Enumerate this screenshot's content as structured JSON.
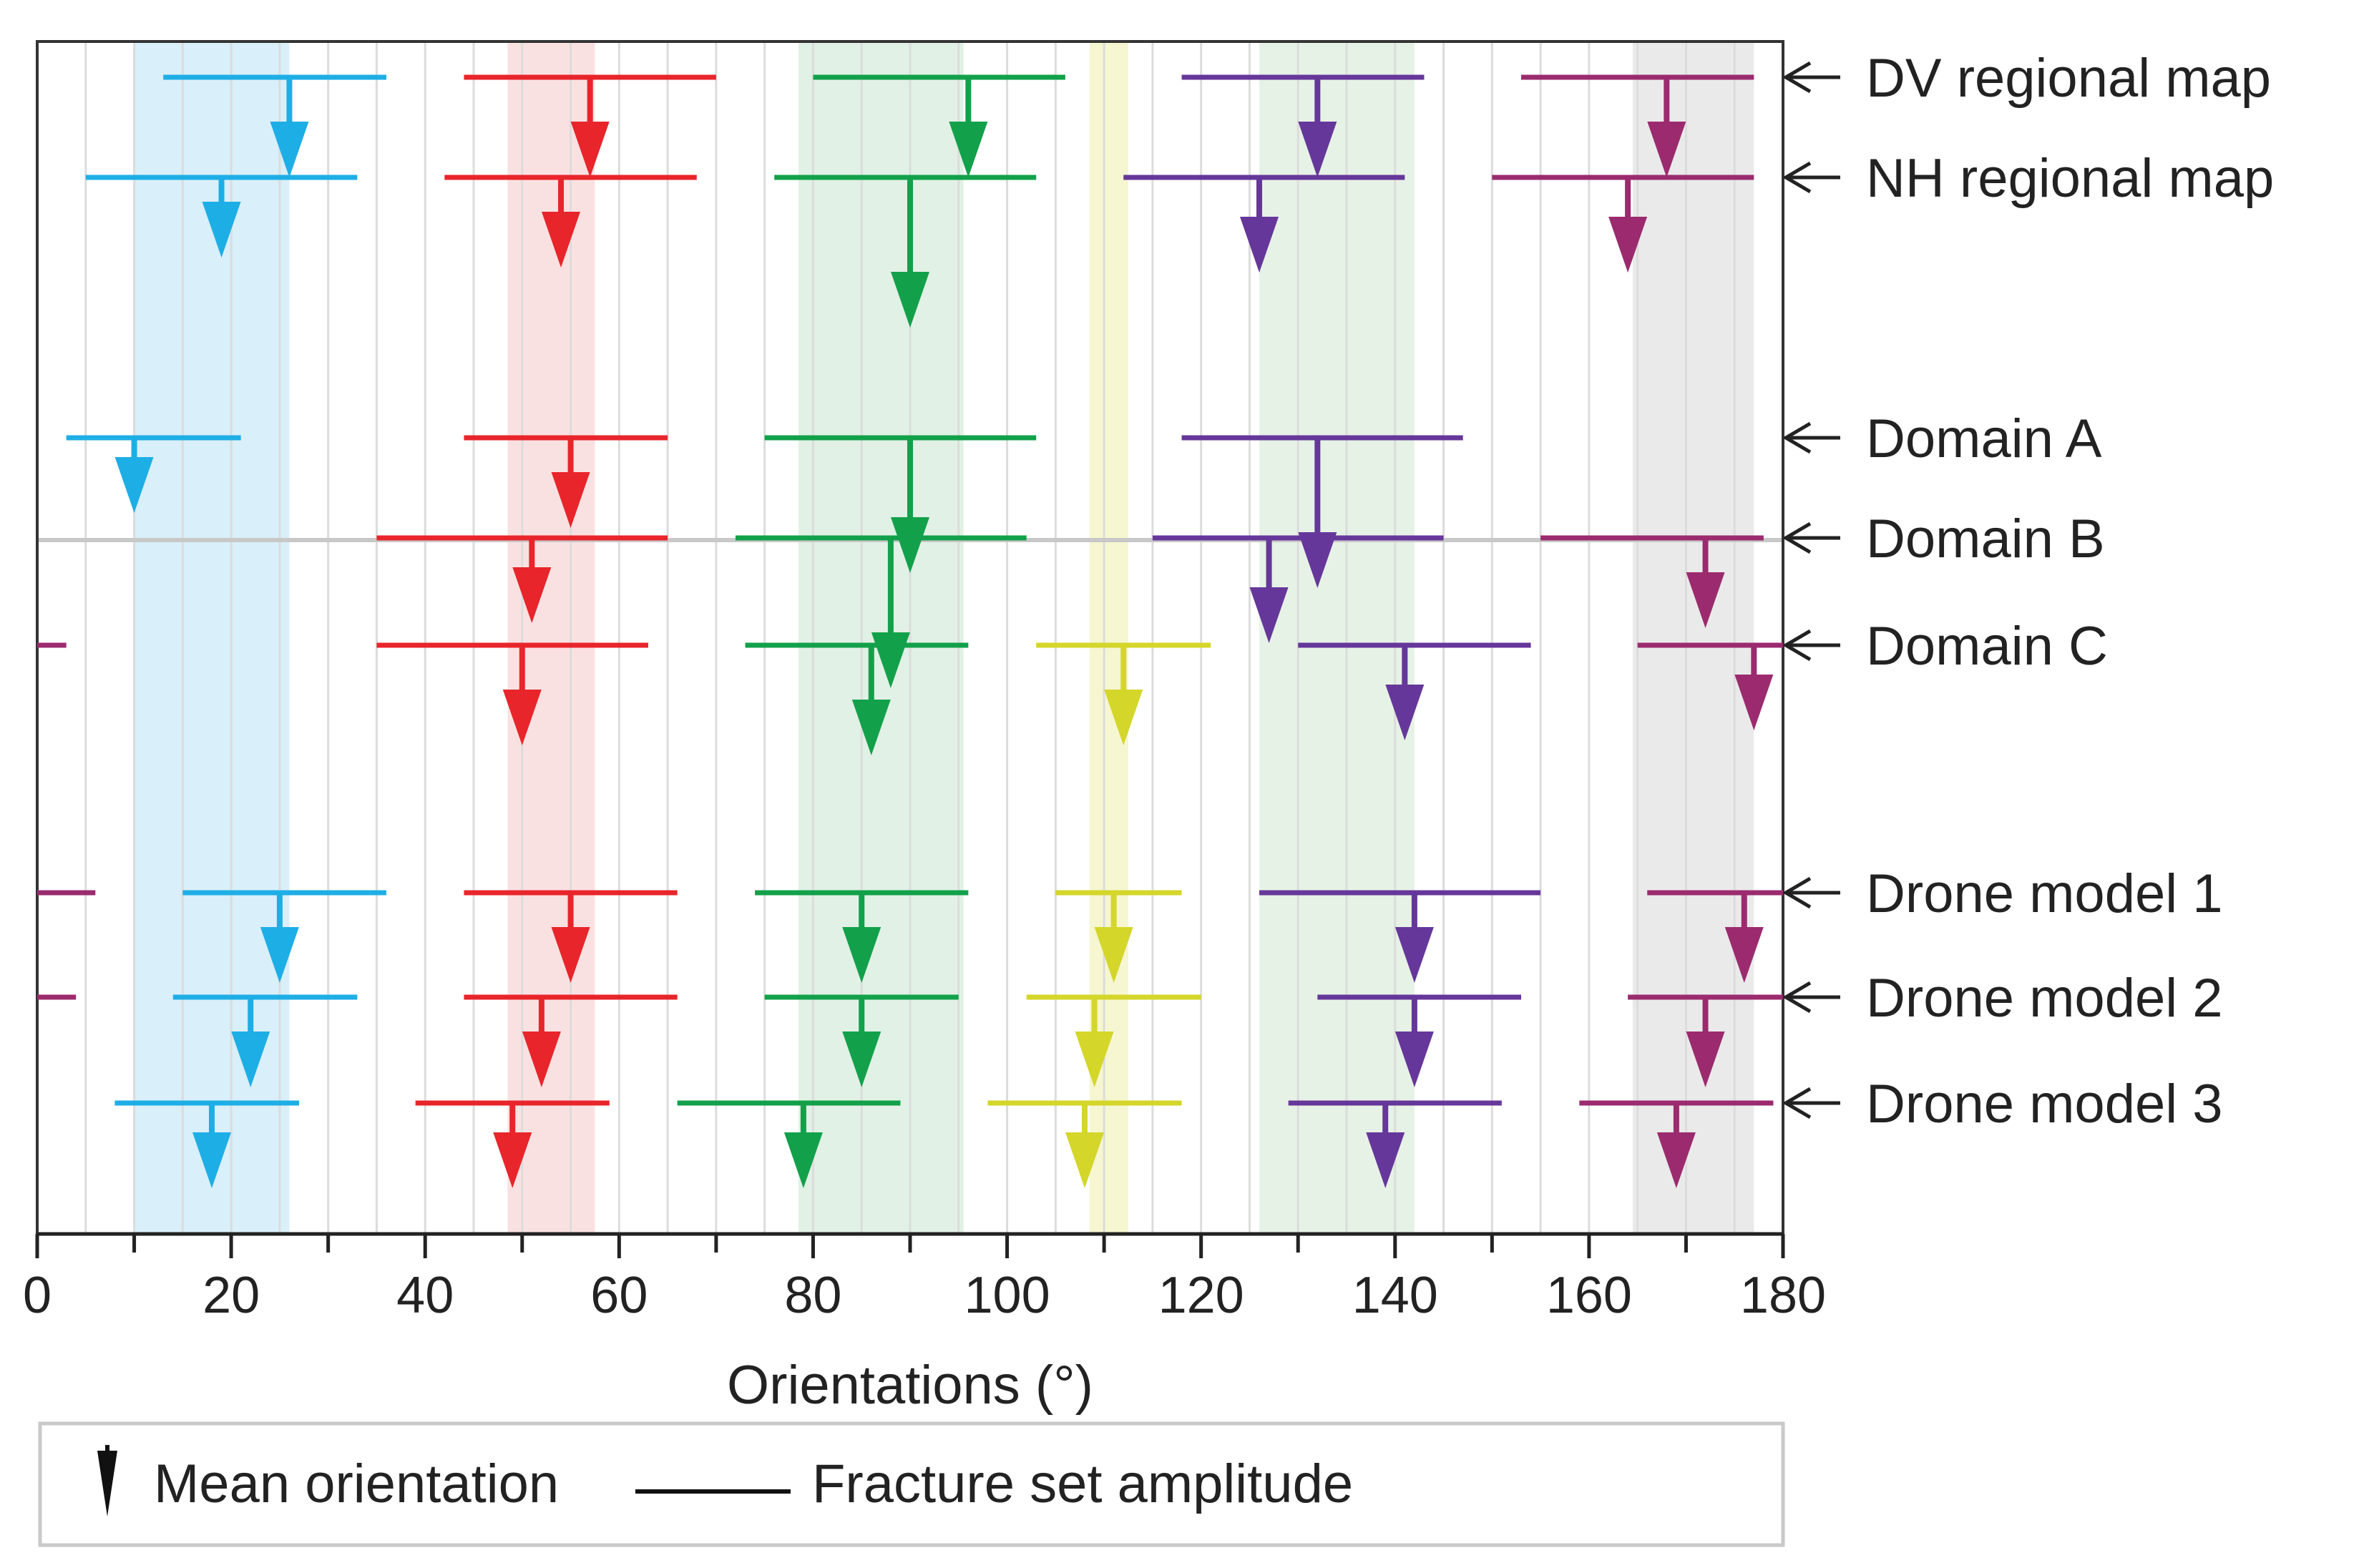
{
  "chart_data": {
    "type": "range-marker",
    "xlabel": "Orientations (°)",
    "xlim": [
      0,
      180
    ],
    "xticks": [
      0,
      20,
      40,
      60,
      80,
      100,
      120,
      140,
      160,
      180
    ],
    "bands": [
      {
        "range": [
          10,
          26
        ],
        "color": "#d2ecf8"
      },
      {
        "range": [
          48.5,
          57.5
        ],
        "color": "#f9dcdc"
      },
      {
        "range": [
          78.5,
          95.5
        ],
        "color": "#dcefe0"
      },
      {
        "range": [
          108.5,
          112.5
        ],
        "color": "#f5f5c8"
      },
      {
        "range": [
          126,
          142
        ],
        "color": "#e2f0e2"
      },
      {
        "range": [
          164.5,
          177
        ],
        "color": "#e6e6e6"
      }
    ],
    "rows": [
      {
        "name": "DV regional map",
        "sets": [
          {
            "set": "cyan",
            "min": 13,
            "max": 36,
            "mean": 26,
            "len": 1.0
          },
          {
            "set": "red",
            "min": 44,
            "max": 70,
            "mean": 57,
            "len": 1.0
          },
          {
            "set": "green",
            "min": 80,
            "max": 106,
            "mean": 96,
            "len": 1.0
          },
          {
            "set": "purple",
            "min": 118,
            "max": 143,
            "mean": 132,
            "len": 1.0
          },
          {
            "set": "magenta",
            "min": 153,
            "max": 177,
            "mean": 168,
            "len": 1.0
          }
        ]
      },
      {
        "name": "NH regional map",
        "sets": [
          {
            "set": "cyan",
            "min": 5,
            "max": 33,
            "mean": 19,
            "len": 0.8
          },
          {
            "set": "red",
            "min": 42,
            "max": 68,
            "mean": 54,
            "len": 0.9
          },
          {
            "set": "green",
            "min": 76,
            "max": 103,
            "mean": 90,
            "len": 1.5
          },
          {
            "set": "purple",
            "min": 112,
            "max": 141,
            "mean": 126,
            "len": 0.95
          },
          {
            "set": "magenta",
            "min": 150,
            "max": 177,
            "mean": 164,
            "len": 0.95
          }
        ]
      },
      {
        "name": "Domain A",
        "sets": [
          {
            "set": "cyan",
            "min": 3,
            "max": 21,
            "mean": 10,
            "len": 0.75
          },
          {
            "set": "red",
            "min": 44,
            "max": 65,
            "mean": 55,
            "len": 0.9
          },
          {
            "set": "green",
            "min": 75,
            "max": 103,
            "mean": 90,
            "len": 1.35
          },
          {
            "set": "purple",
            "min": 118,
            "max": 147,
            "mean": 132,
            "len": 1.5
          }
        ]
      },
      {
        "name": "Domain B",
        "sets": [
          {
            "set": "red",
            "min": 35,
            "max": 65,
            "mean": 51,
            "len": 0.85
          },
          {
            "set": "green",
            "min": 72,
            "max": 102,
            "mean": 88,
            "len": 1.5
          },
          {
            "set": "purple",
            "min": 115,
            "max": 145,
            "mean": 127,
            "len": 1.05
          },
          {
            "set": "magenta",
            "min": 155,
            "max": 178,
            "mean": 172,
            "len": 0.9
          }
        ]
      },
      {
        "name": "Domain C",
        "sets": [
          {
            "set": "magenta",
            "min": 0,
            "max": 3,
            "mean": null,
            "len": 0
          },
          {
            "set": "red",
            "min": 35,
            "max": 63,
            "mean": 50,
            "len": 1.0
          },
          {
            "set": "green",
            "min": 73,
            "max": 96,
            "mean": 86,
            "len": 1.1
          },
          {
            "set": "yellow",
            "min": 103,
            "max": 121,
            "mean": 112,
            "len": 1.0
          },
          {
            "set": "purple",
            "min": 130,
            "max": 154,
            "mean": 141,
            "len": 0.95
          },
          {
            "set": "magenta",
            "min": 165,
            "max": 180,
            "mean": 177,
            "len": 0.85
          }
        ]
      },
      {
        "name": "Drone model 1",
        "sets": [
          {
            "set": "magenta",
            "min": 0,
            "max": 6,
            "mean": null,
            "len": 0
          },
          {
            "set": "cyan",
            "min": 15,
            "max": 36,
            "mean": 25,
            "len": 0.9
          },
          {
            "set": "red",
            "min": 44,
            "max": 66,
            "mean": 55,
            "len": 0.9
          },
          {
            "set": "green",
            "min": 74,
            "max": 96,
            "mean": 85,
            "len": 0.9
          },
          {
            "set": "yellow",
            "min": 105,
            "max": 118,
            "mean": 111,
            "len": 0.9
          },
          {
            "set": "purple",
            "min": 126,
            "max": 155,
            "mean": 142,
            "len": 0.9
          },
          {
            "set": "magenta",
            "min": 166,
            "max": 180,
            "mean": 176,
            "len": 0.9
          }
        ]
      },
      {
        "name": "Drone model 2",
        "sets": [
          {
            "set": "magenta",
            "min": 0,
            "max": 4,
            "mean": null,
            "len": 0
          },
          {
            "set": "cyan",
            "min": 14,
            "max": 33,
            "mean": 22,
            "len": 0.9
          },
          {
            "set": "red",
            "min": 44,
            "max": 66,
            "mean": 52,
            "len": 0.9
          },
          {
            "set": "green",
            "min": 75,
            "max": 95,
            "mean": 85,
            "len": 0.9
          },
          {
            "set": "yellow",
            "min": 102,
            "max": 120,
            "mean": 109,
            "len": 0.9
          },
          {
            "set": "purple",
            "min": 132,
            "max": 153,
            "mean": 142,
            "len": 0.9
          },
          {
            "set": "magenta",
            "min": 164,
            "max": 180,
            "mean": 172,
            "len": 0.9
          }
        ]
      },
      {
        "name": "Drone model 3",
        "sets": [
          {
            "set": "cyan",
            "min": 8,
            "max": 27,
            "mean": 18,
            "len": 0.85
          },
          {
            "set": "red",
            "min": 39,
            "max": 59,
            "mean": 49,
            "len": 0.85
          },
          {
            "set": "green",
            "min": 66,
            "max": 89,
            "mean": 79,
            "len": 0.85
          },
          {
            "set": "yellow",
            "min": 98,
            "max": 118,
            "mean": 108,
            "len": 0.85
          },
          {
            "set": "purple",
            "min": 129,
            "max": 151,
            "mean": 139,
            "len": 0.85
          },
          {
            "set": "magenta",
            "min": 159,
            "max": 179,
            "mean": 169,
            "len": 0.85
          }
        ]
      }
    ],
    "colors": {
      "cyan": "#1eaee6",
      "red": "#e8252b",
      "green": "#12a14a",
      "yellow": "#d4d62a",
      "purple": "#66379a",
      "magenta": "#9b2b6e"
    },
    "legend": {
      "mean": "Mean orientation",
      "amplitude": "Fracture set amplitude"
    }
  }
}
